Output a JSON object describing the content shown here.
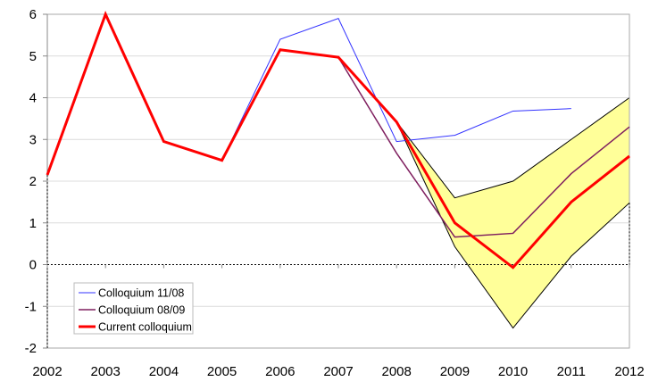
{
  "chart_data": {
    "type": "line",
    "title": "",
    "xlabel": "",
    "ylabel": "",
    "x": [
      2002,
      2003,
      2004,
      2005,
      2006,
      2007,
      2008,
      2009,
      2010,
      2011,
      2012
    ],
    "xlim": [
      2002,
      2012
    ],
    "ylim": [
      -2,
      6
    ],
    "yticks": [
      -2,
      -1,
      0,
      1,
      2,
      3,
      4,
      5,
      6
    ],
    "grid": true,
    "legend_position": "bottom-left",
    "series": [
      {
        "name": "Colloquium 11/08",
        "color": "#3333ff",
        "values": [
          2.15,
          6.0,
          2.95,
          2.5,
          5.4,
          5.9,
          2.95,
          3.1,
          3.68,
          3.74,
          null
        ]
      },
      {
        "name": "Colloquium 08/09",
        "color": "#7f1f5f",
        "values": [
          2.15,
          6.0,
          2.95,
          2.5,
          5.15,
          4.97,
          2.67,
          0.66,
          0.75,
          2.18,
          3.3
        ]
      },
      {
        "name": "Current colloquium",
        "color": "#ff0000",
        "values": [
          2.15,
          6.0,
          2.95,
          2.5,
          5.15,
          4.97,
          3.42,
          1.0,
          -0.07,
          1.5,
          2.6
        ]
      }
    ],
    "band": {
      "color": "#ffff99",
      "x": [
        2008,
        2009,
        2010,
        2011,
        2012
      ],
      "upper": [
        3.42,
        1.6,
        2.0,
        3.0,
        4.0
      ],
      "lower": [
        3.42,
        0.43,
        -1.52,
        0.2,
        1.48
      ]
    }
  }
}
